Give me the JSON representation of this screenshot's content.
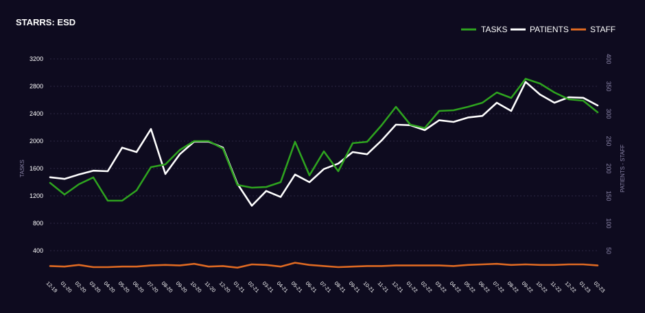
{
  "chart_data": {
    "type": "line",
    "title": "STARRS: ESD",
    "ylabel_left": "TASKS",
    "ylabel_right": "PATIENTS - STAFF",
    "ylim_left": [
      0,
      3200
    ],
    "ylim_right": [
      0,
      400
    ],
    "yticks_left": [
      "400",
      "800",
      "1200",
      "1600",
      "2000",
      "2400",
      "2800",
      "3200"
    ],
    "yticks_right": [
      "50",
      "100",
      "150",
      "200",
      "250",
      "300",
      "350",
      "400"
    ],
    "grid": true,
    "legend_position": "top-right",
    "categories": [
      "12-19",
      "01-20",
      "02-20",
      "03-20",
      "04-20",
      "05-20",
      "06-20",
      "07-20",
      "08-20",
      "09-20",
      "10-20",
      "11-20",
      "12-20",
      "01-21",
      "02-21",
      "03-21",
      "04-21",
      "05-21",
      "06-21",
      "07-21",
      "08-21",
      "09-21",
      "10-21",
      "11-21",
      "12-21",
      "01-22",
      "02-22",
      "03-22",
      "04-22",
      "05-22",
      "06-22",
      "07-22",
      "08-22",
      "09-22",
      "10-22",
      "11-22",
      "12-22",
      "01-23",
      "02-23"
    ],
    "series": [
      {
        "name": "TASKS",
        "axis": "left",
        "color": "#2ea31f",
        "values": [
          1390,
          1220,
          1370,
          1470,
          1130,
          1130,
          1280,
          1620,
          1660,
          1870,
          2000,
          2000,
          1890,
          1360,
          1320,
          1330,
          1400,
          1990,
          1500,
          1850,
          1560,
          1970,
          1990,
          2230,
          2500,
          2240,
          2190,
          2440,
          2450,
          2500,
          2560,
          2710,
          2630,
          2910,
          2840,
          2710,
          2610,
          2590,
          2420
        ]
      },
      {
        "name": "PATIENTS",
        "axis": "right",
        "color": "#ffffff",
        "values": [
          184,
          181,
          189,
          196,
          195,
          238,
          230,
          272,
          190,
          226,
          249,
          249,
          238,
          172,
          132,
          159,
          148,
          189,
          175,
          199,
          209,
          230,
          226,
          251,
          280,
          279,
          270,
          288,
          285,
          293,
          296,
          320,
          305,
          358,
          335,
          320,
          330,
          329,
          315
        ]
      },
      {
        "name": "STAFF",
        "axis": "right",
        "color": "#e06a22",
        "values": [
          22,
          21,
          24,
          20,
          20,
          21,
          21,
          23,
          24,
          23,
          26,
          21,
          22,
          19,
          25,
          24,
          21,
          28,
          24,
          22,
          20,
          21,
          22,
          22,
          23,
          23,
          23,
          23,
          22,
          24,
          25,
          26,
          24,
          25,
          24,
          24,
          25,
          25,
          23
        ]
      }
    ]
  }
}
